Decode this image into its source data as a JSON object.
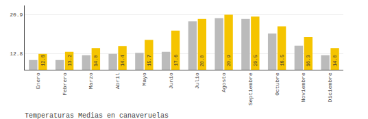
{
  "chart_data": {
    "type": "bar",
    "title": "Temperaturas Medias en canaveruelas",
    "categories": [
      "Enero",
      "Febrero",
      "Marzo",
      "Abril",
      "Mayo",
      "Junio",
      "Julio",
      "Agosto",
      "Septiembre",
      "Octubre",
      "Noviembre",
      "Diciembre"
    ],
    "series": [
      {
        "color": "#BBBBBB",
        "values": [
          11.5,
          11.5,
          12.5,
          12.8,
          13.0,
          13.2,
          19.5,
          20.2,
          20.0,
          17.0,
          14.5,
          12.5
        ]
      },
      {
        "color": "#F5C400",
        "values": [
          12.8,
          13.2,
          14.0,
          14.4,
          15.7,
          17.6,
          20.0,
          20.9,
          20.5,
          18.5,
          16.3,
          14.0
        ],
        "value_labels": [
          "12.8",
          "13.2",
          "14.0",
          "14.4",
          "15.7",
          "17.6",
          "20.0",
          "20.9",
          "20.5",
          "18.5",
          "16.3",
          "14.0"
        ],
        "data_labels": true
      }
    ],
    "ylim": [
      9.5,
      22.8
    ],
    "yticks": [
      12.8,
      20.9
    ],
    "y2lim": [
      9.5,
      22.8
    ],
    "y2ticks": [
      12.8,
      20.9
    ],
    "grid": true
  }
}
